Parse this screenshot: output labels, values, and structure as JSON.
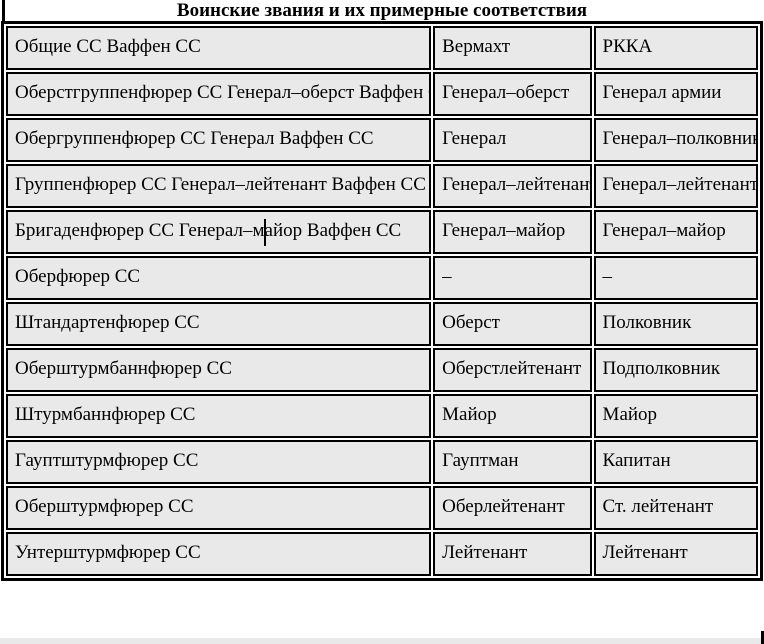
{
  "page": {
    "title": "Воинские звания и их примерные соответствия"
  },
  "table": {
    "header": {
      "ss": "Общие СС Ваффен СС",
      "wehrmacht": "Вермахт",
      "rkka": "РККА"
    },
    "rows": [
      {
        "ss": "Оберстгруппенфюрер СС Генерал–оберст Ваффен СС",
        "wehrmacht": "Генерал–оберст",
        "rkka": "Генерал армии"
      },
      {
        "ss": "Обергруппенфюрер СС Генерал Ваффен СС",
        "wehrmacht": "Генерал",
        "rkka": "Генерал–полковник"
      },
      {
        "ss": "Группенфюрер СС Генерал–лейтенант Ваффен СС",
        "wehrmacht": "Генерал–лейтенант",
        "rkka": "Генерал–лейтенант"
      },
      {
        "ss_pre_caret": "Бригаденфюрер СС Генерал–м",
        "ss_post_caret": "айор Ваффен СС",
        "wehrmacht": "Генерал–майор",
        "rkka": "Генерал–майор"
      },
      {
        "ss": "Оберфюрер СС",
        "wehrmacht": "–",
        "rkka": "–"
      },
      {
        "ss": "Штандартенфюрер СС",
        "wehrmacht": "Оберст",
        "rkka": "Полковник"
      },
      {
        "ss": "Оберштурмбаннфюрер СС",
        "wehrmacht": "Оберстлейтенант",
        "rkka": "Подполковник"
      },
      {
        "ss": "Штурмбаннфюрер СС",
        "wehrmacht": "Майор",
        "rkka": "Майор"
      },
      {
        "ss": "Гауптштурмфюрер СС",
        "wehrmacht": "Гауптман",
        "rkka": "Капитан"
      },
      {
        "ss": "Оберштурмфюрер СС",
        "wehrmacht": "Оберлейтенант",
        "rkka": "Ст. лейтенант"
      },
      {
        "ss": "Унтерштурмфюрер СС",
        "wehrmacht": "Лейтенант",
        "rkka": "Лейтенант"
      }
    ],
    "colors": {
      "cell_background": "#e9e9e9",
      "border": "#000000",
      "gap": "#ffffff"
    }
  }
}
